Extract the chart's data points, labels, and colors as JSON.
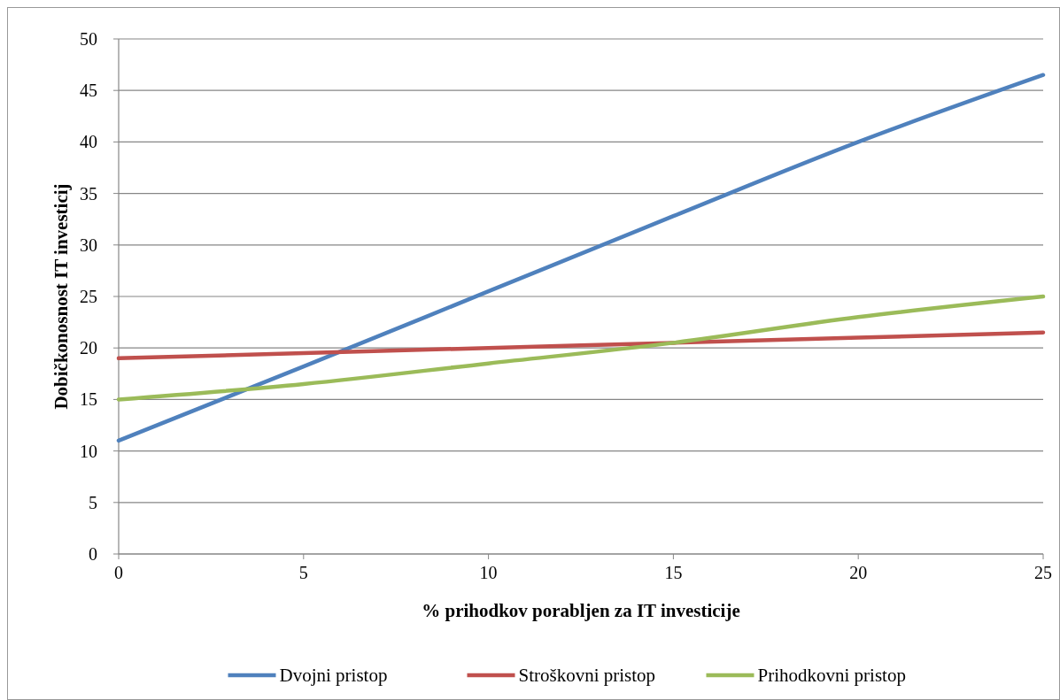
{
  "chart_data": {
    "type": "line",
    "xlabel": "% prihodkov porabljen za IT investicije",
    "ylabel": "Dobičkonosnost IT investicij",
    "x": [
      0,
      5,
      10,
      15,
      20,
      25
    ],
    "xlim": [
      0,
      25
    ],
    "xticks": [
      0,
      5,
      10,
      15,
      20,
      25
    ],
    "ylim": [
      0,
      50
    ],
    "yticks": [
      0,
      5,
      10,
      15,
      20,
      25,
      30,
      35,
      40,
      45,
      50
    ],
    "grid": "y",
    "legend": "bottom",
    "marker": "none",
    "line_style": "solid",
    "series": [
      {
        "name": "Dvojni pristop",
        "color": "#4f81bd",
        "values": [
          11,
          18.2,
          25.5,
          32.8,
          40,
          46.5
        ]
      },
      {
        "name": "Stroškovni pristop",
        "color": "#c0504d",
        "values": [
          19,
          19.5,
          20,
          20.5,
          21,
          21.5
        ]
      },
      {
        "name": "Prihodkovni pristop",
        "color": "#9bbb59",
        "values": [
          15,
          16.5,
          18.5,
          20.5,
          23,
          25
        ]
      }
    ]
  }
}
